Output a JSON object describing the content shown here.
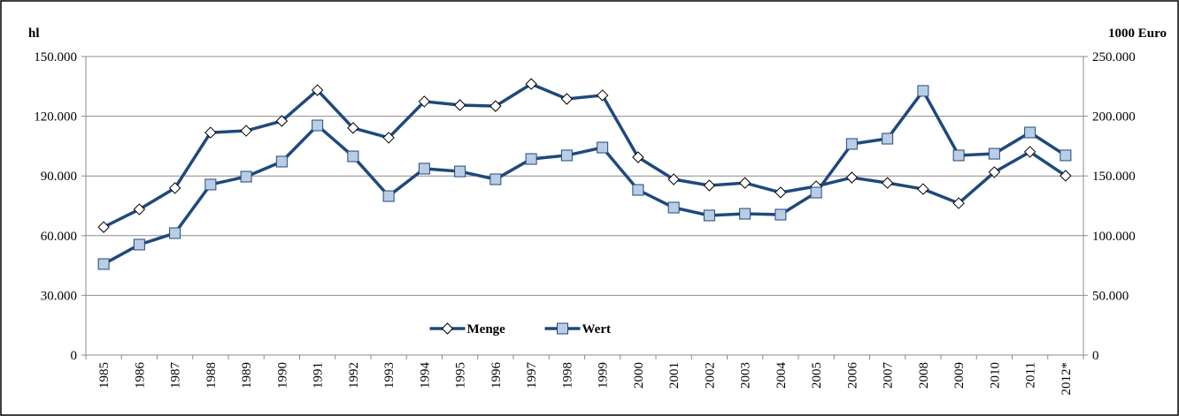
{
  "chart_data": {
    "type": "line",
    "y_label": "hl",
    "y2_label": "1000 Euro",
    "categories": [
      "1985",
      "1986",
      "1987",
      "1988",
      "1989",
      "1990",
      "1991",
      "1992",
      "1993",
      "1994",
      "1995",
      "1996",
      "1997",
      "1998",
      "1999",
      "2000",
      "2001",
      "2002",
      "2003",
      "2004",
      "2005",
      "2006",
      "2007",
      "2008",
      "2009",
      "2010",
      "2011",
      "2012*"
    ],
    "series": [
      {
        "name": "Menge",
        "color": "#1f497d",
        "marker": "diamond",
        "marker_fill": "#ffffff",
        "axis": "y",
        "values": [
          64300,
          73200,
          83900,
          111800,
          112700,
          117600,
          133100,
          114100,
          109200,
          127400,
          125600,
          125100,
          136200,
          128700,
          130500,
          99400,
          88300,
          85200,
          86500,
          81700,
          84800,
          89200,
          86500,
          83400,
          76300,
          91900,
          102100,
          90100
        ]
      },
      {
        "name": "Wert",
        "color": "#1f497d",
        "marker": "square",
        "marker_fill": "#b9cde5",
        "axis": "y2",
        "values": [
          76200,
          92500,
          102100,
          142800,
          149400,
          162000,
          192300,
          166400,
          133100,
          156100,
          153800,
          147200,
          164200,
          167200,
          173800,
          138300,
          123500,
          116900,
          118300,
          117600,
          136100,
          176800,
          181200,
          221200,
          167200,
          168600,
          186400,
          167200
        ]
      }
    ],
    "ylim": [
      0,
      150000
    ],
    "yticks": [
      0,
      {
        "value": 30000,
        "label": "30.000"
      },
      {
        "value": 60000,
        "label": "60.000"
      },
      {
        "value": 90000,
        "label": "90.000"
      },
      {
        "value": 120000,
        "label": "120.000"
      },
      {
        "value": 150000,
        "label": "150.000"
      }
    ],
    "y2lim": [
      0,
      250000
    ],
    "y2ticks": [
      0,
      {
        "value": 50000,
        "label": "50.000"
      },
      {
        "value": 100000,
        "label": "100.000"
      },
      {
        "value": 150000,
        "label": "150.000"
      },
      {
        "value": 200000,
        "label": "200.000"
      },
      {
        "value": 250000,
        "label": "250.000"
      }
    ],
    "grid": true,
    "legend": "lower-center"
  }
}
